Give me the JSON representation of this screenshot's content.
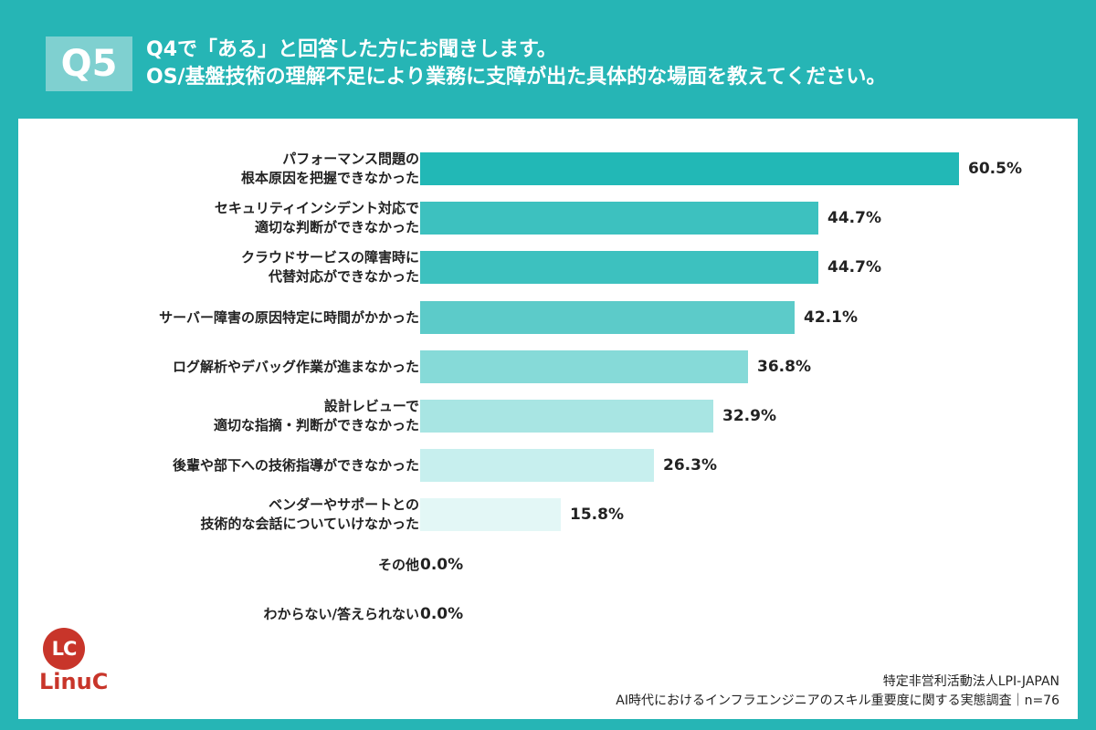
{
  "header": {
    "question_badge": "Q5",
    "title_line1": "Q4で「ある」と回答した方にお聞きします。",
    "title_line2": "OS/基盤技術の理解不足により業務に支障が出た具体的な場面を教えてください。"
  },
  "chart_data": {
    "type": "bar",
    "orientation": "horizontal",
    "categories": [
      "パフォーマンス問題の\n根本原因を把握できなかった",
      "セキュリティインシデント対応で\n適切な判断ができなかった",
      "クラウドサービスの障害時に\n代替対応ができなかった",
      "サーバー障害の原因特定に時間がかかった",
      "ログ解析やデバッグ作業が進まなかった",
      "設計レビューで\n適切な指摘・判断ができなかった",
      "後輩や部下への技術指導ができなかった",
      "ベンダーやサポートとの\n技術的な会話についていけなかった",
      "その他",
      "わからない/答えられない"
    ],
    "values": [
      60.5,
      44.7,
      44.7,
      42.1,
      36.8,
      32.9,
      26.3,
      15.8,
      0.0,
      0.0
    ],
    "value_labels": [
      "60.5%",
      "44.7%",
      "44.7%",
      "42.1%",
      "36.8%",
      "32.9%",
      "26.3%",
      "15.8%",
      "0.0%",
      "0.0%"
    ],
    "bar_colors": [
      "#22b8b6",
      "#3dc1bf",
      "#3dc1bf",
      "#5ccbc9",
      "#86dad8",
      "#a8e5e3",
      "#c7efee",
      "#e3f7f6",
      "#ffffff",
      "#ffffff"
    ],
    "xlim": [
      0,
      100
    ],
    "title": "",
    "xlabel": "",
    "ylabel": "",
    "grid": false,
    "legend": "none"
  },
  "brand": {
    "logo_initials": "LC",
    "logo_word": "LinuC",
    "color": "#c8352a"
  },
  "source": {
    "line1": "特定非営利活動法人LPI-JAPAN",
    "line2": "AI時代におけるインフラエンジニアのスキル重要度に関する実態調査｜n=76"
  },
  "colors": {
    "frame": "#26b5b5",
    "badge": "#7fd0d0"
  }
}
